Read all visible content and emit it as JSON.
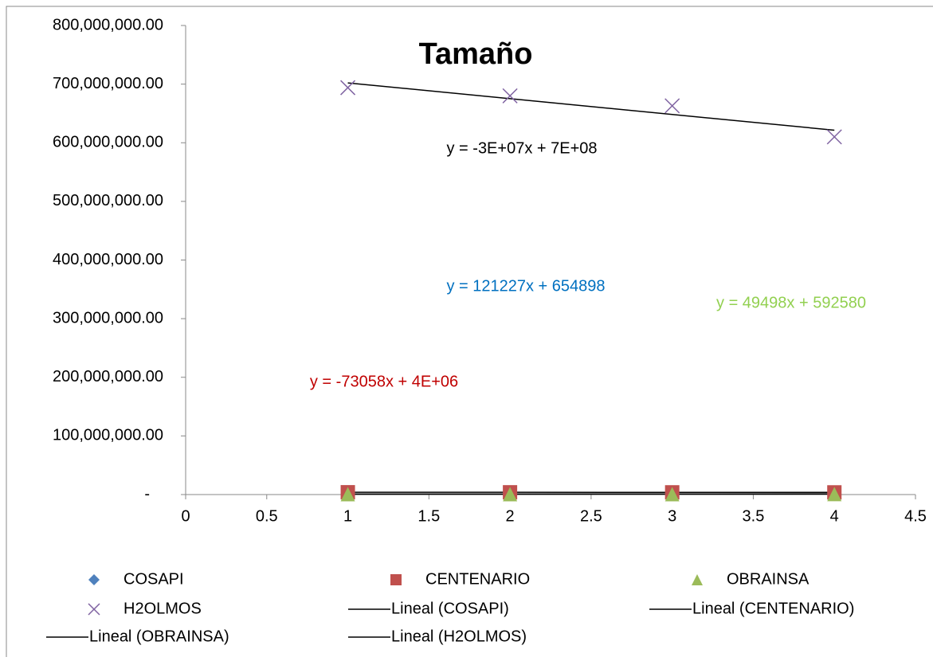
{
  "chart_data": {
    "type": "scatter",
    "title": "Tamaño",
    "xlim": [
      0,
      4.5
    ],
    "xticks": [
      0,
      0.5,
      1,
      1.5,
      2,
      2.5,
      3,
      3.5,
      4,
      4.5
    ],
    "ylim": [
      0,
      800000000
    ],
    "yticks": [
      {
        "value": 0,
        "label": "-"
      },
      {
        "value": 100000000,
        "label": "100,000,000.00"
      },
      {
        "value": 200000000,
        "label": "200,000,000.00"
      },
      {
        "value": 300000000,
        "label": "300,000,000.00"
      },
      {
        "value": 400000000,
        "label": "400,000,000.00"
      },
      {
        "value": 500000000,
        "label": "500,000,000.00"
      },
      {
        "value": 600000000,
        "label": "600,000,000.00"
      },
      {
        "value": 700000000,
        "label": "700,000,000.00"
      },
      {
        "value": 800000000,
        "label": "800,000,000.00"
      }
    ],
    "grid": false,
    "series": [
      {
        "name": "COSAPI",
        "color": "#4f81bd",
        "marker": "diamond",
        "x": [
          1,
          2,
          3,
          4
        ],
        "values": [
          780000,
          900000,
          1020000,
          1140000
        ],
        "trendline": {
          "name": "Lineal (COSAPI)",
          "equation": "y = 121227x + 654898",
          "color": "#000000",
          "label_color": "#0070c0"
        }
      },
      {
        "name": "CENTENARIO",
        "color": "#c0504d",
        "marker": "square",
        "x": [
          1,
          2,
          3,
          4
        ],
        "values": [
          3930000,
          3850000,
          3780000,
          3710000
        ],
        "trendline": {
          "name": "Lineal (CENTENARIO)",
          "equation": "y = -73058x + 4E+06",
          "color": "#000000",
          "label_color": "#c00000"
        }
      },
      {
        "name": "OBRAINSA",
        "color": "#9bbb59",
        "marker": "triangle",
        "x": [
          1,
          2,
          3,
          4
        ],
        "values": [
          640000,
          690000,
          740000,
          790000
        ],
        "trendline": {
          "name": "Lineal (OBRAINSA)",
          "equation": "y = 49498x + 592580",
          "color": "#000000",
          "label_color": "#92d050"
        }
      },
      {
        "name": "H2OLMOS",
        "color": "#8064a2",
        "marker": "x",
        "x": [
          1,
          2,
          3,
          4
        ],
        "values": [
          694000000,
          680000000,
          663000000,
          610000000
        ],
        "trendline": {
          "name": "Lineal (H2OLMOS)",
          "equation": "y = -3E+07x + 7E+08",
          "color": "#000000",
          "label_color": "#000000"
        }
      }
    ]
  }
}
